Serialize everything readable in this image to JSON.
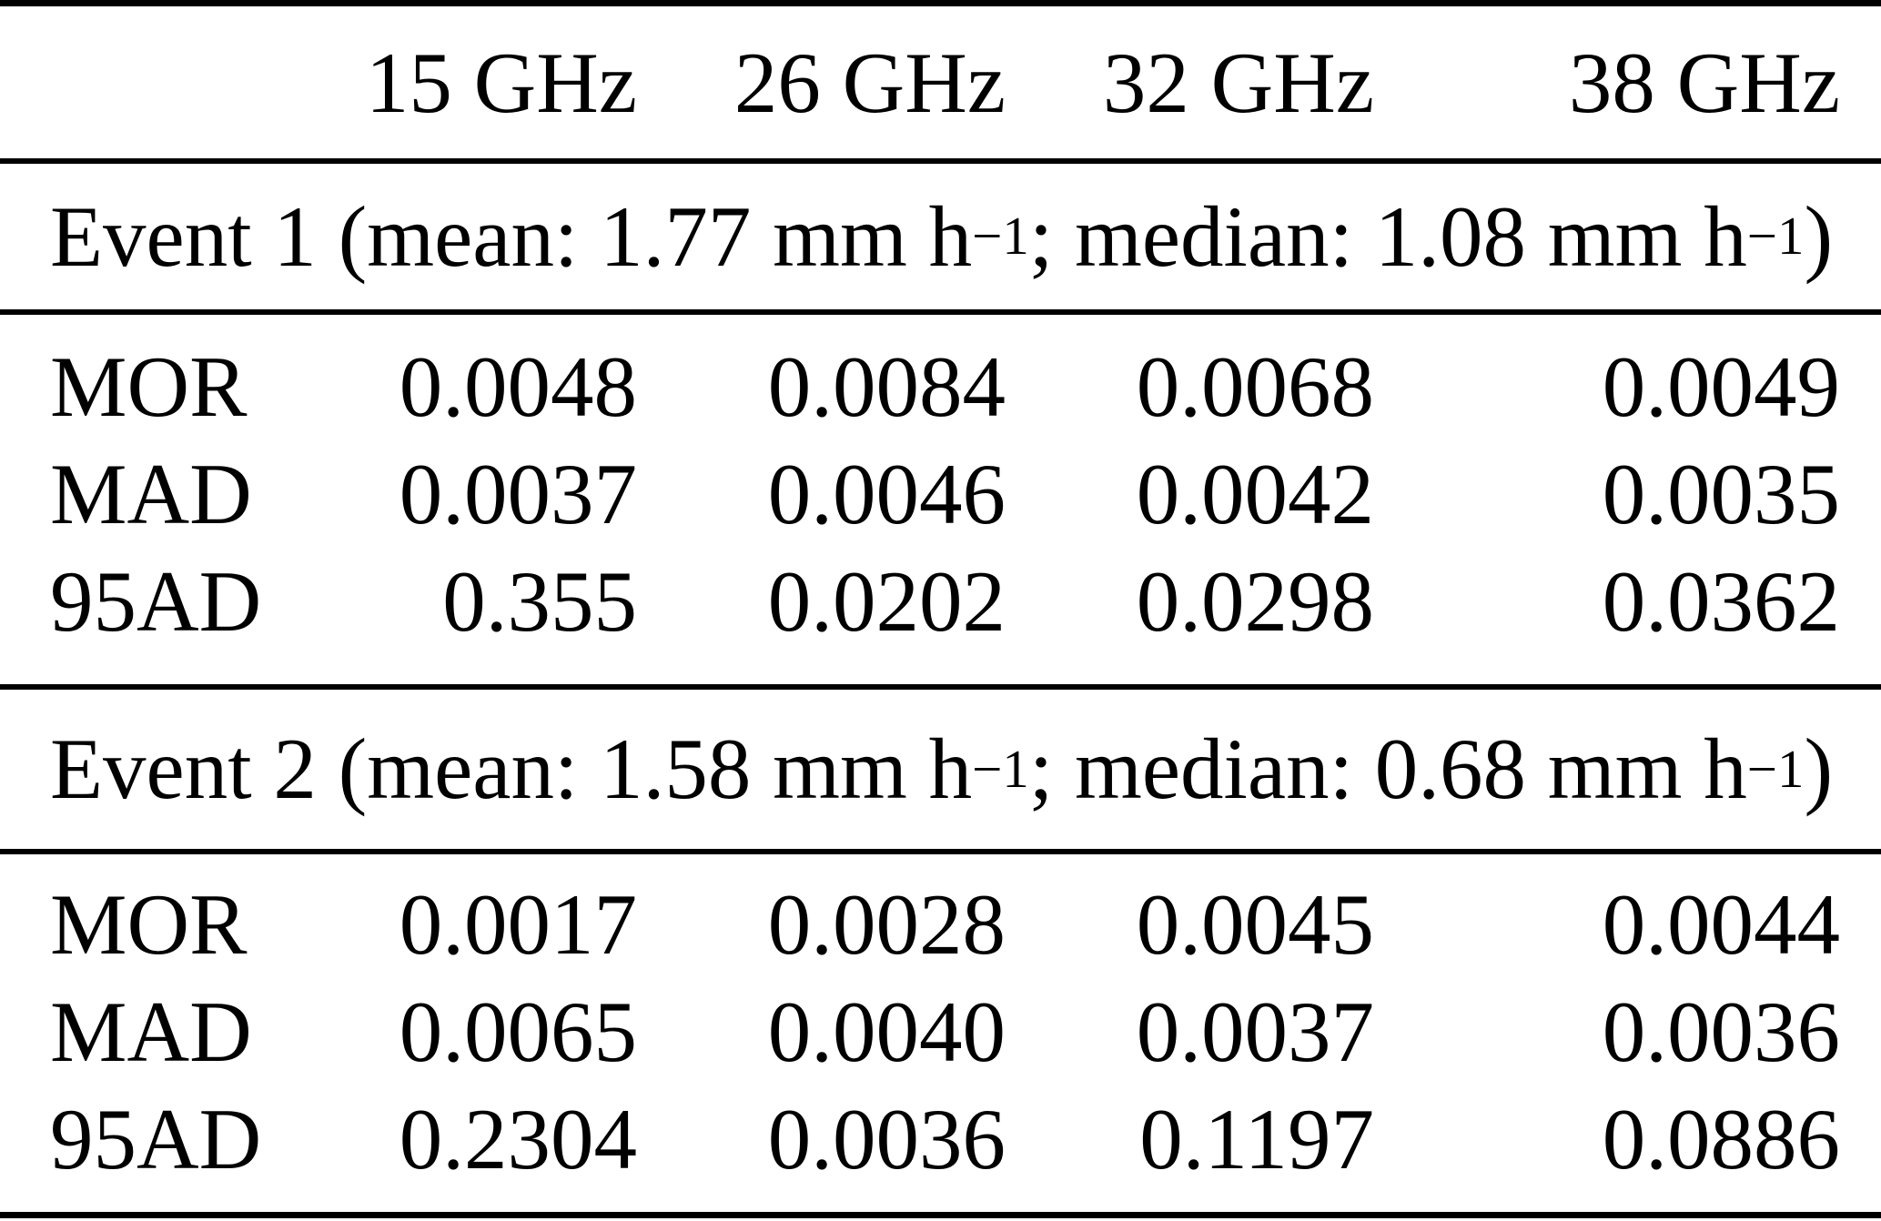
{
  "colors": {
    "background": "#ffffff",
    "text": "#000000",
    "rule": "#000000"
  },
  "table": {
    "columns": [
      "15 GHz",
      "26 GHz",
      "32 GHz",
      "38 GHz"
    ],
    "row_labels": [
      "MOR",
      "MAD",
      "95AD"
    ],
    "events": [
      {
        "name": "Event 1",
        "mean": "1.77",
        "median": "1.08",
        "unit": "mm h",
        "title_parts": {
          "p1": "Event 1 (mean: 1.77 mm h",
          "s1": "−1",
          "p2": "; median: 1.08 mm h",
          "s2": "−1",
          "p3": ")"
        },
        "rows": [
          {
            "label": "MOR",
            "values": [
              "0.0048",
              "0.0084",
              "0.0068",
              "0.0049"
            ]
          },
          {
            "label": "MAD",
            "values": [
              "0.0037",
              "0.0046",
              "0.0042",
              "0.0035"
            ]
          },
          {
            "label": "95AD",
            "values": [
              "0.355",
              "0.0202",
              "0.0298",
              "0.0362"
            ]
          }
        ]
      },
      {
        "name": "Event 2",
        "mean": "1.58",
        "median": "0.68",
        "unit": "mm h",
        "title_parts": {
          "p1": "Event 2 (mean: 1.58 mm h",
          "s1": "−1",
          "p2": "; median: 0.68 mm h",
          "s2": "−1",
          "p3": ")"
        },
        "rows": [
          {
            "label": "MOR",
            "values": [
              "0.0017",
              "0.0028",
              "0.0045",
              "0.0044"
            ]
          },
          {
            "label": "MAD",
            "values": [
              "0.0065",
              "0.0040",
              "0.0037",
              "0.0036"
            ]
          },
          {
            "label": "95AD",
            "values": [
              "0.2304",
              "0.0036",
              "0.1197",
              "0.0886"
            ]
          }
        ]
      }
    ]
  }
}
